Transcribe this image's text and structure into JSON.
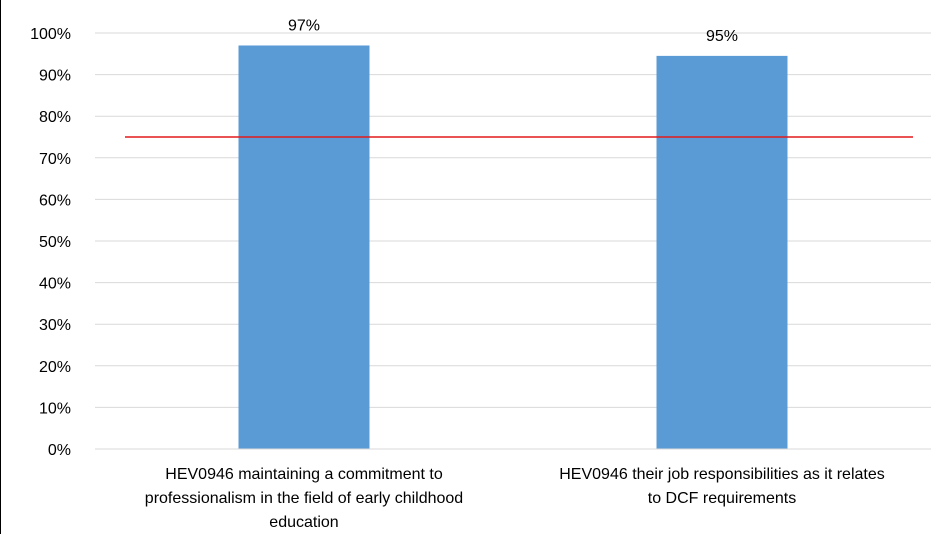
{
  "colors": {
    "bar": "#5b9bd5",
    "target_line": "#e31a1c",
    "grid": "#d9d9d9",
    "axis": "#d9d9d9",
    "text": "#000000"
  },
  "chart_data": {
    "type": "bar",
    "categories": [
      "HEV0946 maintaining a commitment to professionalism in the field of early childhood education",
      "HEV0946 their job responsibilities as it relates to DCF requirements"
    ],
    "category_label_lines": [
      [
        "HEV0946 maintaining a commitment to",
        "professionalism in the field of early childhood",
        "education"
      ],
      [
        "HEV0946 their job responsibilities as it relates",
        "to DCF requirements"
      ]
    ],
    "series": [
      {
        "values": [
          97,
          94.5
        ],
        "data_labels": [
          "97%",
          "95%"
        ]
      }
    ],
    "reference_line": {
      "value": 75
    },
    "ylim": [
      0,
      100
    ],
    "yticks": [
      0,
      10,
      20,
      30,
      40,
      50,
      60,
      70,
      80,
      90,
      100
    ],
    "ytick_labels": [
      "0%",
      "10%",
      "20%",
      "30%",
      "40%",
      "50%",
      "60%",
      "70%",
      "80%",
      "90%",
      "100%"
    ],
    "grid": true,
    "legend": "none",
    "title": "",
    "xlabel": "",
    "ylabel": ""
  }
}
